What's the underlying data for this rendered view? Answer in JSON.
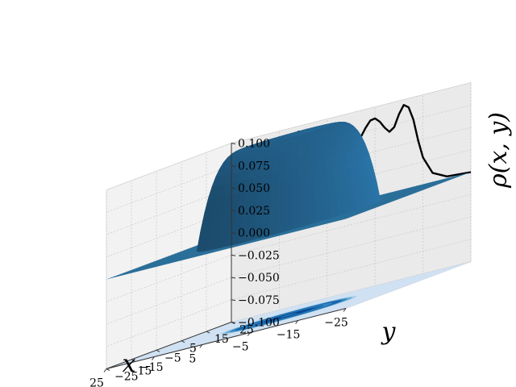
{
  "chart_data": {
    "type": "surface3d",
    "title": "",
    "xlabel": "x",
    "ylabel": "y",
    "zlabel": "ρ(x, y)",
    "x_ticks": [
      "−25",
      "−15",
      "−5",
      "5",
      "15",
      "25"
    ],
    "y_ticks": [
      "−25",
      "−15",
      "−5",
      "5",
      "15",
      "25"
    ],
    "z_ticks": [
      "−0.100",
      "−0.075",
      "−0.050",
      "−0.025",
      "0.000",
      "0.025",
      "0.050",
      "0.075",
      "0.100"
    ],
    "xlim": [
      -25,
      25
    ],
    "ylim": [
      -25,
      25
    ],
    "zlim": [
      -0.1,
      0.1
    ],
    "grid": true,
    "surface": {
      "shape": "radial ring",
      "peak_value": 0.1,
      "ring_radius": 8,
      "center_dip_value": 0.08,
      "support_radius": 17,
      "color": "#2b74a8"
    },
    "projection_curve": {
      "description_color": "#000000",
      "x": [
        -25,
        -20,
        -17,
        -15,
        -14,
        -13,
        -12,
        -11,
        -10,
        -9,
        -8,
        -7,
        -6,
        -5,
        -4,
        -3,
        -2,
        -1,
        0,
        1,
        2,
        3,
        4,
        5,
        6,
        7,
        8,
        9,
        10,
        11,
        12,
        13,
        14,
        15,
        17,
        20,
        25
      ],
      "z": [
        0,
        0.002,
        0.01,
        0.03,
        0.05,
        0.075,
        0.09,
        0.094,
        0.085,
        0.072,
        0.068,
        0.074,
        0.082,
        0.087,
        0.086,
        0.079,
        0.07,
        0.072,
        0.078,
        0.072,
        0.07,
        0.079,
        0.086,
        0.087,
        0.082,
        0.074,
        0.068,
        0.072,
        0.085,
        0.094,
        0.09,
        0.075,
        0.05,
        0.03,
        0.01,
        0.002,
        0
      ]
    },
    "contour": {
      "floor_value": -0.1,
      "colors": [
        "#cfe1f2",
        "#a9cce4",
        "#6aaed6",
        "#3787c0",
        "#1764ab",
        "#084a91"
      ],
      "rings": [
        {
          "r": 12.6,
          "level": 1
        },
        {
          "r": 11.8,
          "level": 2
        },
        {
          "r": 10.9,
          "level": 3
        },
        {
          "r": 9.9,
          "level": 4
        },
        {
          "r": 8.2,
          "level": 3
        },
        {
          "r": 6.5,
          "level": 4
        },
        {
          "r": 4.6,
          "level": 5
        },
        {
          "r": 1.6,
          "level": 3
        }
      ]
    }
  }
}
